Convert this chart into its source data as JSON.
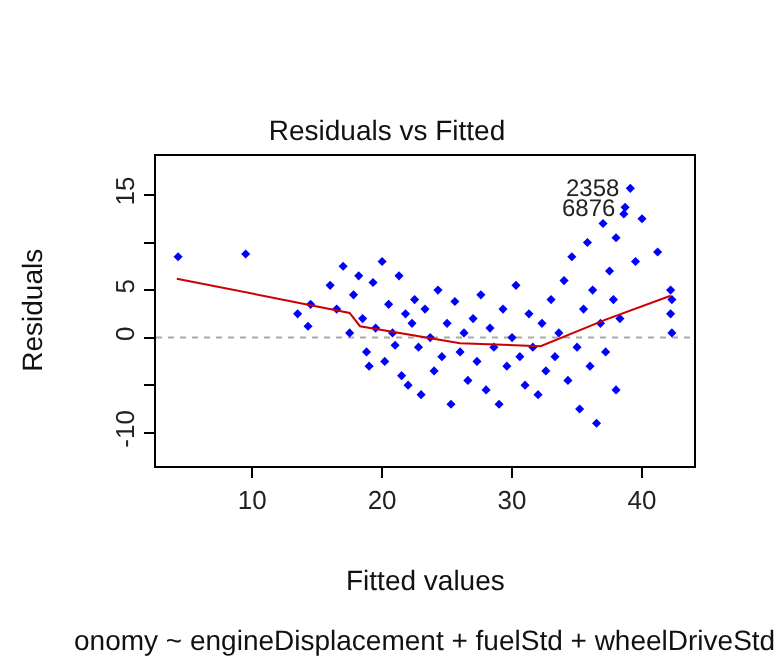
{
  "chart_data": {
    "type": "scatter",
    "title": "Residuals vs Fitted",
    "xlabel": "Fitted values",
    "ylabel": "Residuals",
    "annotations": [
      {
        "text": "2358",
        "x": 39.1,
        "y": 15.7
      },
      {
        "text": "6876",
        "x": 38.7,
        "y": 13.7
      },
      "onomy ~ engineDisplacement + fuelStd + wheelDriveStd"
    ],
    "series": [
      {
        "color": "#0000ff",
        "marker": "diamond",
        "x": [
          4.3,
          9.5,
          13.5,
          14.5,
          14.3,
          16,
          16.5,
          17,
          17.5,
          17.8,
          18.2,
          18.5,
          18.8,
          19,
          19.3,
          19.5,
          20,
          20.2,
          20.5,
          20.8,
          21,
          21.3,
          21.5,
          21.8,
          22,
          22.3,
          22.5,
          22.8,
          23,
          23.3,
          23.7,
          24,
          24.3,
          24.6,
          25,
          25.3,
          25.6,
          26,
          26.3,
          26.6,
          27,
          27.3,
          27.6,
          28,
          28.3,
          28.6,
          29,
          29.3,
          29.6,
          30,
          30.3,
          30.6,
          31,
          31.3,
          31.6,
          32,
          32.3,
          32.6,
          33,
          33.3,
          33.6,
          34,
          34.3,
          34.6,
          35,
          35.2,
          35.5,
          35.8,
          36,
          36.2,
          36.5,
          36.8,
          37,
          37.2,
          37.5,
          37.8,
          38,
          38,
          38.3,
          38.6,
          38.7,
          39.1,
          39.5,
          40,
          41.2,
          42.2,
          42.3,
          42.2,
          42.3
        ],
        "values": [
          8.5,
          8.8,
          2.5,
          3.5,
          1.2,
          5.5,
          3,
          7.5,
          0.5,
          4.5,
          6.5,
          2,
          -1.5,
          -3,
          5.8,
          1,
          8,
          -2.5,
          3.5,
          0.5,
          -0.8,
          6.5,
          -4,
          2.5,
          -5,
          1.5,
          4,
          -1,
          -6,
          3,
          0,
          -3.5,
          5,
          -2,
          1.5,
          -7,
          3.8,
          -1.5,
          0.5,
          -4.5,
          2,
          -2.5,
          4.5,
          -5.5,
          1,
          -1,
          -7,
          3,
          -3,
          0,
          5.5,
          -2,
          -5,
          2.5,
          -1,
          -6,
          1.5,
          -3.5,
          4,
          -2,
          0.5,
          6,
          -4.5,
          8.5,
          -1,
          -7.5,
          3,
          10,
          -3,
          5,
          -9,
          1.5,
          12,
          -1.5,
          7,
          4,
          -5.5,
          10.5,
          2,
          13,
          13.7,
          15.7,
          8,
          12.5,
          9,
          5,
          4,
          2.5,
          0.5
        ]
      },
      {
        "type": "line",
        "color": "#cc0000",
        "line_style": "solid",
        "x": [
          4.2,
          17.5,
          18.3,
          26,
          32.2,
          37.2,
          42.2
        ],
        "values": [
          6.2,
          2.6,
          1.2,
          -0.6,
          -0.9,
          1.9,
          4.4
        ]
      }
    ],
    "ref_lines": [
      {
        "axis": "y",
        "value": 0,
        "color": "#aaaaaa",
        "line_style": "dotted"
      }
    ],
    "xlim": [
      2.6,
      44
    ],
    "xticks": [
      10,
      20,
      30,
      40
    ],
    "ylim": [
      -13.5,
      19.1
    ],
    "yticks": [
      -10,
      {
        "value": -5,
        "label": null
      },
      0,
      5,
      {
        "value": 10,
        "label": null
      },
      15
    ],
    "grid": false
  }
}
